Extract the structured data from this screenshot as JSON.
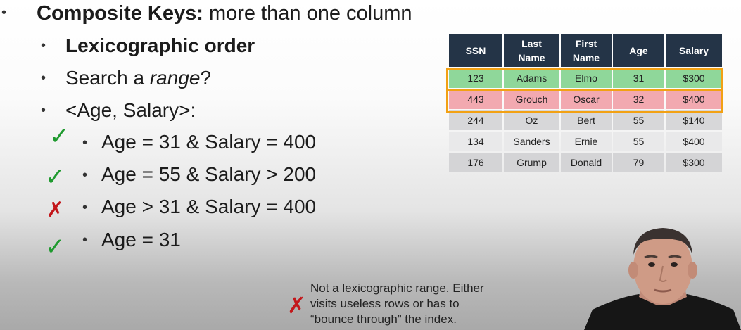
{
  "slide": {
    "heading_bold": "Composite Keys:",
    "heading_rest": " more than one column",
    "sub1": "Lexicographic order",
    "sub2_a": "Search a ",
    "sub2_b": "range",
    "sub2_c": "?",
    "sub3": "<Age, Salary>:",
    "queries": [
      {
        "text": "Age = 31 & Salary = 400",
        "mark": "check"
      },
      {
        "text": "Age = 55 & Salary > 200",
        "mark": "check"
      },
      {
        "text": "Age > 31 & Salary = 400",
        "mark": "cross"
      },
      {
        "text": "Age = 31",
        "mark": "check"
      }
    ],
    "bullet_glyph": "•",
    "check_glyph": "✓",
    "cross_glyph": "✗",
    "note_lines": [
      "Not a lexicographic range. Either",
      "visits useless rows or has to",
      "“bounce through” the index."
    ]
  },
  "table": {
    "headers": [
      [
        "SSN"
      ],
      [
        "Last",
        "Name"
      ],
      [
        "First",
        "Name"
      ],
      [
        "Age"
      ],
      [
        "Salary"
      ]
    ],
    "rows": [
      [
        "123",
        "Adams",
        "Elmo",
        "31",
        "$300"
      ],
      [
        "443",
        "Grouch",
        "Oscar",
        "32",
        "$400"
      ],
      [
        "244",
        "Oz",
        "Bert",
        "55",
        "$140"
      ],
      [
        "134",
        "Sanders",
        "Ernie",
        "55",
        "$400"
      ],
      [
        "176",
        "Grump",
        "Donald",
        "79",
        "$300"
      ]
    ],
    "header_color": "#243447",
    "highlight_color": "#f2a114",
    "match_row_color": "#8fd79a",
    "skip_row_color": "#f2a9b0"
  },
  "colors": {
    "check": "#1f9a2f",
    "cross": "#c3171b"
  }
}
